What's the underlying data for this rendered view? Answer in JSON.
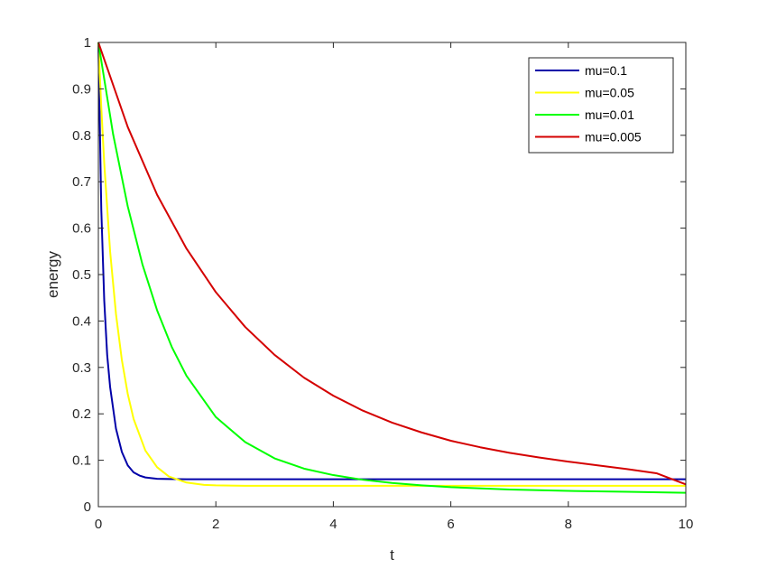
{
  "chart_data": {
    "type": "line",
    "title": "",
    "xlabel": "t",
    "ylabel": "energy",
    "xlim": [
      0,
      10
    ],
    "ylim": [
      0,
      1
    ],
    "xticks": [
      0,
      2,
      4,
      6,
      8,
      10
    ],
    "yticks": [
      0,
      0.1,
      0.2,
      0.3,
      0.4,
      0.5,
      0.6,
      0.7,
      0.8,
      0.9,
      1
    ],
    "xtick_labels": [
      "0",
      "2",
      "4",
      "6",
      "8",
      "10"
    ],
    "ytick_labels": [
      "0",
      "0.1",
      "0.2",
      "0.3",
      "0.4",
      "0.5",
      "0.6",
      "0.7",
      "0.8",
      "0.9",
      "1"
    ],
    "grid": false,
    "legend_position": "top-right",
    "series": [
      {
        "name": "mu=0.1",
        "color": "#0000a8",
        "x": [
          0,
          0.05,
          0.1,
          0.15,
          0.2,
          0.3,
          0.4,
          0.5,
          0.6,
          0.7,
          0.8,
          1.0,
          1.2,
          1.5,
          2,
          3,
          4,
          5,
          6,
          7,
          8,
          9,
          10
        ],
        "y": [
          1.0,
          0.64,
          0.444,
          0.327,
          0.258,
          0.168,
          0.118,
          0.089,
          0.074,
          0.067,
          0.063,
          0.06,
          0.0595,
          0.059,
          0.059,
          0.059,
          0.059,
          0.059,
          0.059,
          0.059,
          0.059,
          0.059,
          0.059
        ]
      },
      {
        "name": "mu=0.05",
        "color": "#ffff00",
        "x": [
          0,
          0.05,
          0.1,
          0.2,
          0.3,
          0.4,
          0.5,
          0.6,
          0.8,
          1.0,
          1.2,
          1.5,
          1.8,
          2.0,
          2.5,
          3,
          4,
          5,
          6,
          7,
          8,
          9,
          10
        ],
        "y": [
          1.0,
          0.86,
          0.74,
          0.55,
          0.415,
          0.316,
          0.243,
          0.189,
          0.121,
          0.085,
          0.065,
          0.052,
          0.047,
          0.046,
          0.045,
          0.045,
          0.045,
          0.045,
          0.045,
          0.045,
          0.045,
          0.045,
          0.045
        ]
      },
      {
        "name": "mu=0.01",
        "color": "#00ff00",
        "x": [
          0,
          0.25,
          0.5,
          0.75,
          1.0,
          1.25,
          1.5,
          2,
          2.5,
          3,
          3.5,
          4,
          4.5,
          5,
          5.5,
          6,
          7,
          8,
          9,
          10
        ],
        "y": [
          1.0,
          0.803,
          0.647,
          0.522,
          0.423,
          0.344,
          0.282,
          0.193,
          0.139,
          0.104,
          0.082,
          0.068,
          0.058,
          0.051,
          0.046,
          0.042,
          0.037,
          0.034,
          0.032,
          0.03
        ]
      },
      {
        "name": "mu=0.005",
        "color": "#d40000",
        "x": [
          0,
          0.5,
          1,
          1.5,
          2,
          2.5,
          3,
          3.5,
          4,
          4.5,
          5,
          5.5,
          6,
          6.5,
          7,
          7.5,
          8,
          8.5,
          9,
          9.5,
          10
        ],
        "y": [
          1.0,
          0.818,
          0.672,
          0.556,
          0.462,
          0.387,
          0.327,
          0.278,
          0.239,
          0.207,
          0.181,
          0.16,
          0.142,
          0.128,
          0.116,
          0.106,
          0.097,
          0.089,
          0.081,
          0.072,
          0.048
        ]
      }
    ]
  }
}
